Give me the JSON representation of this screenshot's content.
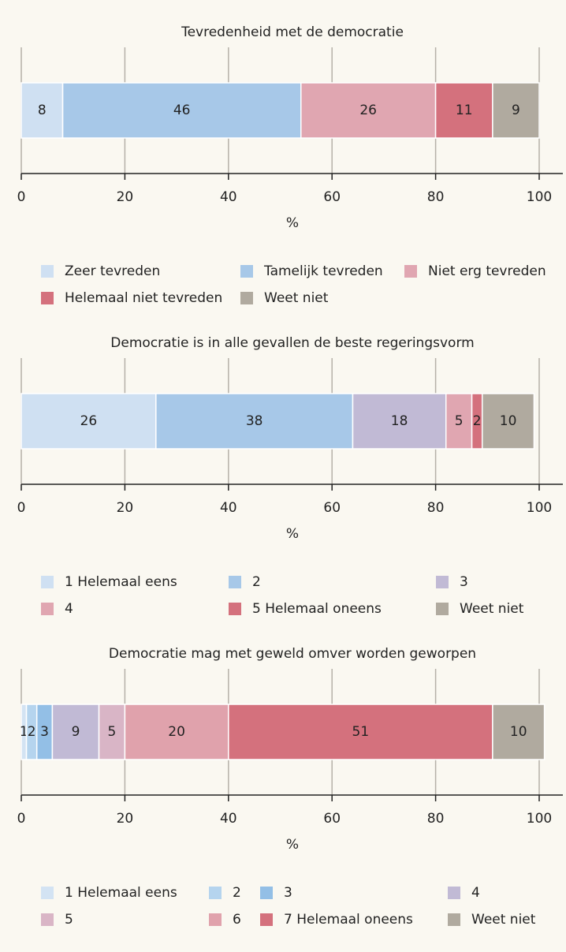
{
  "chart_data": [
    {
      "type": "bar",
      "orientation": "horizontal",
      "stacked": true,
      "title": "Tevredenheid met de democratie",
      "categories": [
        null
      ],
      "series": [
        {
          "name": "Zeer tevreden",
          "color": "#cfe0f2",
          "values": [
            8
          ]
        },
        {
          "name": "Tamelijk tevreden",
          "color": "#a7c8e8",
          "values": [
            46
          ]
        },
        {
          "name": "Niet erg tevreden",
          "color": "#e0a6b1",
          "values": [
            26
          ]
        },
        {
          "name": "Helemaal niet tevreden",
          "color": "#d4717d",
          "values": [
            11
          ]
        },
        {
          "name": "Weet niet",
          "color": "#b0aa9f",
          "values": [
            9
          ]
        }
      ],
      "xlim": [
        0,
        100
      ],
      "xticks": [
        0,
        20,
        40,
        60,
        80,
        100
      ],
      "xlabel": "%",
      "grid": true
    },
    {
      "type": "bar",
      "orientation": "horizontal",
      "stacked": true,
      "title": "Democratie is in alle gevallen de beste regeringsvorm",
      "categories": [
        null
      ],
      "series": [
        {
          "name": "1 Helemaal eens",
          "color": "#cfe0f2",
          "values": [
            26
          ]
        },
        {
          "name": "2",
          "color": "#a7c8e8",
          "values": [
            38
          ]
        },
        {
          "name": "3",
          "color": "#c1bad5",
          "values": [
            18
          ]
        },
        {
          "name": "4",
          "color": "#e0a6b1",
          "values": [
            5
          ]
        },
        {
          "name": "5 Helemaal oneens",
          "color": "#d4717d",
          "values": [
            2
          ]
        },
        {
          "name": "Weet niet",
          "color": "#b0aa9f",
          "values": [
            10
          ]
        }
      ],
      "xlim": [
        0,
        100
      ],
      "xticks": [
        0,
        20,
        40,
        60,
        80,
        100
      ],
      "xlabel": "%",
      "grid": true
    },
    {
      "type": "bar",
      "orientation": "horizontal",
      "stacked": true,
      "title": "Democratie mag met geweld omver worden geworpen",
      "categories": [
        null
      ],
      "series": [
        {
          "name": "1 Helemaal eens",
          "color": "#d3e3f3",
          "values": [
            1
          ]
        },
        {
          "name": "2",
          "color": "#b5d4ee",
          "values": [
            2
          ]
        },
        {
          "name": "3",
          "color": "#93bfe6",
          "values": [
            3
          ]
        },
        {
          "name": "4",
          "color": "#c1bad5",
          "values": [
            9
          ]
        },
        {
          "name": "5",
          "color": "#d9b5c6",
          "values": [
            5
          ]
        },
        {
          "name": "6",
          "color": "#e0a2ac",
          "values": [
            20
          ]
        },
        {
          "name": "7 Helemaal oneens",
          "color": "#d4717d",
          "values": [
            51
          ]
        },
        {
          "name": "Weet niet",
          "color": "#b0aa9f",
          "values": [
            10
          ]
        }
      ],
      "xlim": [
        0,
        100
      ],
      "xticks": [
        0,
        20,
        40,
        60,
        80,
        100
      ],
      "xlabel": "%",
      "grid": true
    }
  ]
}
